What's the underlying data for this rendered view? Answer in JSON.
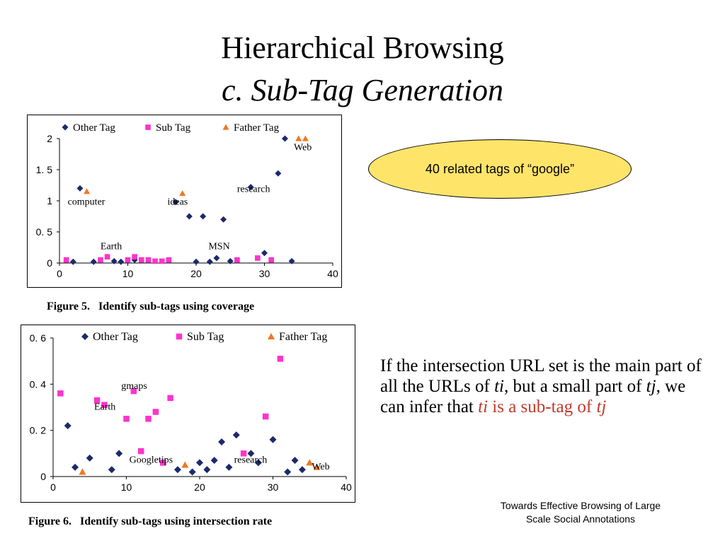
{
  "title": "Hierarchical Browsing",
  "subtitle": "c. Sub-Tag Generation",
  "callout": "40 related tags of “google”",
  "paragraph": {
    "p1": "If the intersection URL set is the main part of all the URLs of ",
    "ti": "ti",
    "p2": ", but a small part of ",
    "tj": "tj",
    "p3": ", we can infer that ",
    "hl_ti": "ti",
    "hl_mid": " is a sub-tag of ",
    "hl_tj": "tj"
  },
  "footer": {
    "line1": "Towards Effective Browsing of Large",
    "line2": "Scale Social Annotations"
  },
  "colors": {
    "other": "#1a2a6c",
    "sub": "#ff33cc",
    "father": "#f07820",
    "highlight": "#c0392b",
    "callout_bg": "#ffe46a"
  },
  "chart_data": [
    {
      "type": "scatter",
      "caption": "Figure 5.   Identify sub-tags using coverage",
      "xlim": [
        0,
        40
      ],
      "ylim": [
        0,
        2
      ],
      "x_ticks": [
        "0",
        "10",
        "20",
        "30",
        "40"
      ],
      "y_ticks": [
        "0",
        "0. 5",
        "1",
        "1. 5",
        "2"
      ],
      "y_tick_values": [
        0,
        0.5,
        1,
        1.5,
        2
      ],
      "legend": "top-left",
      "grid": false,
      "series": [
        {
          "name": "Other Tag",
          "marker": "diamond",
          "points": [
            [
              2,
              0.02
            ],
            [
              3,
              1.2
            ],
            [
              5,
              0.02
            ],
            [
              8,
              0.03
            ],
            [
              9,
              0.02
            ],
            [
              11,
              0.05
            ],
            [
              17,
              0.98
            ],
            [
              19,
              0.75
            ],
            [
              20,
              0.02
            ],
            [
              21,
              0.75
            ],
            [
              22,
              0.02
            ],
            [
              23,
              0.08
            ],
            [
              24,
              0.7
            ],
            [
              25,
              0.03
            ],
            [
              28,
              1.22
            ],
            [
              30,
              0.16
            ],
            [
              32,
              1.44
            ],
            [
              33,
              2.0
            ],
            [
              34,
              0.03
            ]
          ]
        },
        {
          "name": "Sub Tag",
          "marker": "square",
          "points": [
            [
              1,
              0.05
            ],
            [
              6,
              0.05
            ],
            [
              7,
              0.1
            ],
            [
              10,
              0.05
            ],
            [
              11,
              0.1
            ],
            [
              12,
              0.05
            ],
            [
              13,
              0.05
            ],
            [
              14,
              0.03
            ],
            [
              15,
              0.03
            ],
            [
              16,
              0.05
            ],
            [
              26,
              0.05
            ],
            [
              29,
              0.08
            ],
            [
              31,
              0.05
            ]
          ]
        },
        {
          "name": "Father Tag",
          "marker": "triangle",
          "points": [
            [
              4,
              1.15
            ],
            [
              18,
              1.12
            ],
            [
              35,
              2.0
            ],
            [
              36,
              2.0
            ]
          ]
        }
      ],
      "annotations": [
        {
          "text": "computer",
          "x": 1.2,
          "y": 0.94
        },
        {
          "text": "ideas",
          "x": 15.8,
          "y": 0.94
        },
        {
          "text": "research",
          "x": 26,
          "y": 1.14
        },
        {
          "text": "Web",
          "x": 34.3,
          "y": 1.81
        },
        {
          "text": "Earth",
          "x": 6,
          "y": 0.22
        },
        {
          "text": "MSN",
          "x": 21.8,
          "y": 0.22
        }
      ]
    },
    {
      "type": "scatter",
      "caption": "Figure 6.   Identify sub-tags using intersection rate",
      "xlim": [
        0,
        40
      ],
      "ylim": [
        0,
        0.6
      ],
      "x_ticks": [
        "0",
        "10",
        "20",
        "30",
        "40"
      ],
      "y_ticks": [
        "0",
        "0. 2",
        "0. 4",
        "0. 6"
      ],
      "y_tick_values": [
        0,
        0.2,
        0.4,
        0.6
      ],
      "legend": "top",
      "grid": false,
      "series": [
        {
          "name": "Other Tag",
          "marker": "diamond",
          "points": [
            [
              2,
              0.22
            ],
            [
              3,
              0.04
            ],
            [
              5,
              0.08
            ],
            [
              8,
              0.03
            ],
            [
              9,
              0.1
            ],
            [
              17,
              0.03
            ],
            [
              19,
              0.02
            ],
            [
              20,
              0.06
            ],
            [
              21,
              0.03
            ],
            [
              22,
              0.07
            ],
            [
              23,
              0.15
            ],
            [
              24,
              0.04
            ],
            [
              25,
              0.18
            ],
            [
              27,
              0.1
            ],
            [
              28,
              0.06
            ],
            [
              30,
              0.16
            ],
            [
              32,
              0.02
            ],
            [
              33,
              0.07
            ],
            [
              34,
              0.03
            ]
          ]
        },
        {
          "name": "Sub Tag",
          "marker": "square",
          "points": [
            [
              1,
              0.36
            ],
            [
              6,
              0.33
            ],
            [
              7,
              0.31
            ],
            [
              10,
              0.25
            ],
            [
              11,
              0.37
            ],
            [
              12,
              0.11
            ],
            [
              13,
              0.25
            ],
            [
              14,
              0.28
            ],
            [
              15,
              0.06
            ],
            [
              16,
              0.34
            ],
            [
              26,
              0.1
            ],
            [
              29,
              0.26
            ],
            [
              31,
              0.51
            ]
          ]
        },
        {
          "name": "Father Tag",
          "marker": "triangle",
          "points": [
            [
              4,
              0.02
            ],
            [
              18,
              0.05
            ],
            [
              35,
              0.06
            ],
            [
              36,
              0.04
            ]
          ]
        }
      ],
      "annotations": [
        {
          "text": "gmaps",
          "x": 9.3,
          "y": 0.38
        },
        {
          "text": "Earth",
          "x": 5.6,
          "y": 0.29
        },
        {
          "text": "Googletips",
          "x": 10.4,
          "y": 0.06
        },
        {
          "text": "research",
          "x": 24.7,
          "y": 0.06
        },
        {
          "text": "Web",
          "x": 35.3,
          "y": 0.03
        }
      ]
    }
  ]
}
